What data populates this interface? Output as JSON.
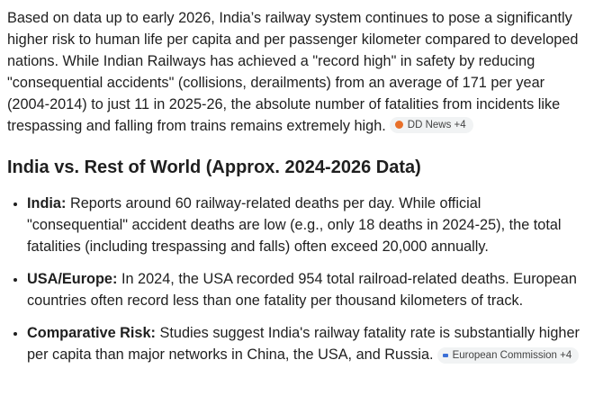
{
  "intro": {
    "text": "Based on data up to early 2026, India’s railway system continues to pose a significantly higher risk to human life per capita and per passenger kilometer compared to developed nations. While Indian Railways has achieved a \"record high\" in safety by reducing \"consequential accidents\" (collisions, derailments) from an average of 171 per year (2004-2014) to just 11 in 2025-26, the absolute number of fatalities from incidents like trespassing and falling from trains remains extremely high.",
    "source": "DD News +4"
  },
  "heading": "India vs. Rest of World (Approx. 2024-2026 Data)",
  "bullets": [
    {
      "label": "India:",
      "text": "Reports around 60 railway-related deaths per day. While official \"consequential\" accident deaths are low (e.g., only 18 deaths in 2024-25), the total fatalities (including trespassing and falls) often exceed 20,000 annually."
    },
    {
      "label": "USA/Europe:",
      "text": "In 2024, the USA recorded 954 total railroad-related deaths. European countries often record less than one fatality per thousand kilometers of track."
    },
    {
      "label": "Comparative Risk:",
      "text": "Studies suggest India's railway fatality rate is substantially higher per capita than major networks in China, the USA, and Russia.",
      "source": "European Commission +4"
    }
  ]
}
